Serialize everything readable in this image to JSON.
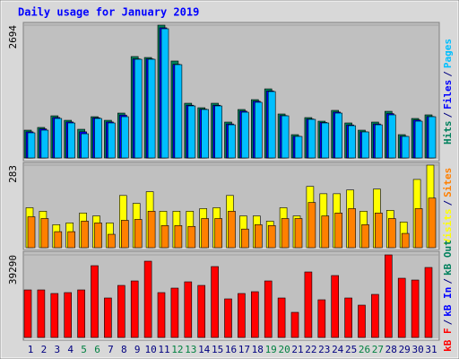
{
  "title": "Daily usage for January 2019",
  "separator": "/",
  "chart_data": [
    {
      "type": "bar",
      "ylim": [
        0,
        2694
      ],
      "yticks": [
        2694
      ],
      "series": [
        {
          "name": "Hits",
          "color": "#00805c",
          "values": [
            564,
            619,
            855,
            764,
            582,
            837,
            764,
            910,
            2057,
            2038,
            2694,
            1966,
            1110,
            1019,
            1110,
            728,
            983,
            1183,
            1401,
            892,
            473,
            819,
            746,
            965,
            710,
            564,
            728,
            946,
            473,
            801,
            874
          ]
        },
        {
          "name": "Files",
          "color": "#0000ff",
          "values": [
            530,
            590,
            820,
            730,
            530,
            815,
            730,
            870,
            2010,
            2010,
            2640,
            1900,
            1070,
            990,
            1070,
            690,
            950,
            1150,
            1360,
            860,
            440,
            790,
            720,
            930,
            670,
            530,
            690,
            900,
            440,
            770,
            840
          ]
        },
        {
          "name": "Pages",
          "color": "#00bfff",
          "values": [
            510,
            564,
            801,
            710,
            491,
            801,
            710,
            837,
            2002,
            2002,
            2621,
            1893,
            1056,
            983,
            1056,
            673,
            928,
            1129,
            1347,
            855,
            437,
            783,
            710,
            910,
            655,
            528,
            673,
            874,
            437,
            746,
            837
          ]
        }
      ]
    },
    {
      "type": "bar",
      "ylim": [
        0,
        283
      ],
      "yticks": [
        283
      ],
      "series": [
        {
          "name": "Visits",
          "color": "#ffff00",
          "values": [
            137,
            125,
            79,
            85,
            119,
            109,
            85,
            179,
            152,
            192,
            125,
            125,
            125,
            134,
            137,
            179,
            109,
            109,
            91,
            137,
            109,
            210,
            185,
            185,
            198,
            125,
            201,
            128,
            88,
            234,
            283
          ]
        },
        {
          "name": "Sites",
          "color": "#ff8000",
          "values": [
            106,
            100,
            55,
            55,
            91,
            85,
            46,
            94,
            97,
            125,
            76,
            76,
            73,
            100,
            100,
            125,
            64,
            79,
            76,
            100,
            100,
            155,
            109,
            119,
            134,
            79,
            119,
            100,
            49,
            134,
            170
          ]
        }
      ]
    },
    {
      "type": "bar",
      "ylim": [
        0,
        39290
      ],
      "yticks": [
        39290
      ],
      "categories": [
        "1",
        "2",
        "3",
        "4",
        "5",
        "6",
        "7",
        "8",
        "9",
        "10",
        "11",
        "12",
        "13",
        "14",
        "15",
        "16",
        "17",
        "18",
        "19",
        "20",
        "21",
        "22",
        "23",
        "24",
        "25",
        "26",
        "27",
        "28",
        "29",
        "30",
        "31"
      ],
      "category_colors": [
        "#000080",
        "#000080",
        "#000080",
        "#000080",
        "#008040",
        "#008040",
        "#000080",
        "#000080",
        "#000080",
        "#000080",
        "#000080",
        "#008040",
        "#008040",
        "#000080",
        "#000080",
        "#000080",
        "#000080",
        "#000080",
        "#008040",
        "#008040",
        "#000080",
        "#000080",
        "#000080",
        "#000080",
        "#000080",
        "#008040",
        "#008040",
        "#000080",
        "#000080",
        "#000080",
        "#000080"
      ],
      "series": [
        {
          "name": "kB F",
          "color": "#ff0000",
          "values": [
            22631,
            22631,
            20923,
            21350,
            22631,
            34160,
            18788,
            24766,
            26901,
            36295,
            21350,
            23485,
            26474,
            24766,
            33733,
            18361,
            20923,
            21777,
            26901,
            18788,
            11956,
            31171,
            17934,
            29463,
            18788,
            15372,
            20496,
            39290,
            28182,
            27328,
            33306
          ]
        },
        {
          "name": "kB In",
          "color": "#0000ff",
          "values": [
            0,
            0,
            0,
            0,
            0,
            0,
            0,
            0,
            0,
            0,
            0,
            0,
            0,
            0,
            0,
            0,
            0,
            0,
            0,
            0,
            0,
            0,
            0,
            0,
            0,
            0,
            0,
            0,
            0,
            0,
            0
          ]
        },
        {
          "name": "kB Out",
          "color": "#00805c",
          "values": [
            0,
            0,
            0,
            0,
            0,
            0,
            0,
            0,
            0,
            0,
            0,
            0,
            0,
            0,
            0,
            0,
            0,
            0,
            0,
            0,
            0,
            0,
            0,
            0,
            0,
            0,
            0,
            0,
            0,
            0,
            0
          ]
        }
      ]
    }
  ]
}
